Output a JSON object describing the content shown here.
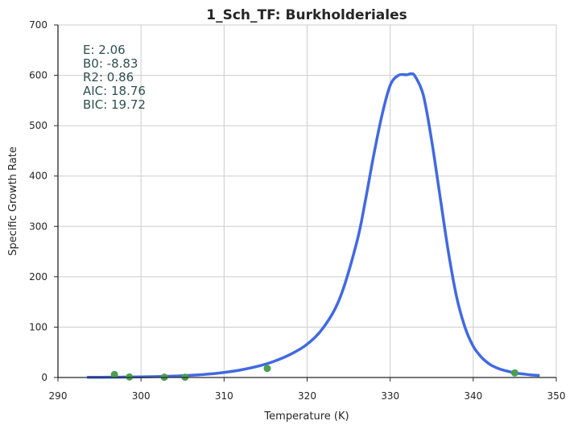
{
  "chart_data": {
    "type": "line",
    "title": "1_Sch_TF: Burkholderiales",
    "xlabel": "Temperature (K)",
    "ylabel": "Specific Growth Rate",
    "xlim": [
      290,
      350
    ],
    "ylim": [
      0,
      700
    ],
    "xticks": [
      "290",
      "300",
      "310",
      "320",
      "330",
      "340",
      "350"
    ],
    "yticks": [
      "0",
      "100",
      "200",
      "300",
      "400",
      "500",
      "600",
      "700"
    ],
    "grid": true,
    "annotations": [
      "E:  2.06",
      "B0:  -8.83",
      "R2:  0.86",
      "AIC: 18.76",
      "BIC: 19.72"
    ],
    "series": [
      {
        "kind": "line",
        "color": "#4169e1",
        "x": [
          293.5,
          296,
          298,
          300,
          302,
          304,
          306,
          308,
          310,
          312,
          314,
          316,
          318,
          320,
          322,
          324,
          326,
          327,
          328,
          329,
          330,
          331,
          332,
          332.5,
          333,
          334,
          335,
          336,
          337,
          338,
          339,
          340,
          341,
          342,
          343,
          344,
          345,
          346,
          347,
          348
        ],
        "y": [
          0.3,
          0.5,
          0.8,
          1.2,
          1.8,
          2.8,
          4.3,
          6.6,
          10,
          15,
          22,
          32,
          46,
          66,
          100,
          160,
          270,
          350,
          440,
          520,
          580,
          600,
          601,
          603,
          598,
          560,
          470,
          360,
          250,
          160,
          100,
          62,
          40,
          26,
          18,
          13,
          9,
          7,
          5,
          4
        ]
      },
      {
        "kind": "scatter",
        "color": "#4c9f50",
        "x": [
          296.8,
          298.6,
          302.8,
          305.3,
          315.2,
          345
        ],
        "y": [
          6,
          1,
          0.5,
          0.5,
          18,
          9
        ]
      }
    ]
  }
}
